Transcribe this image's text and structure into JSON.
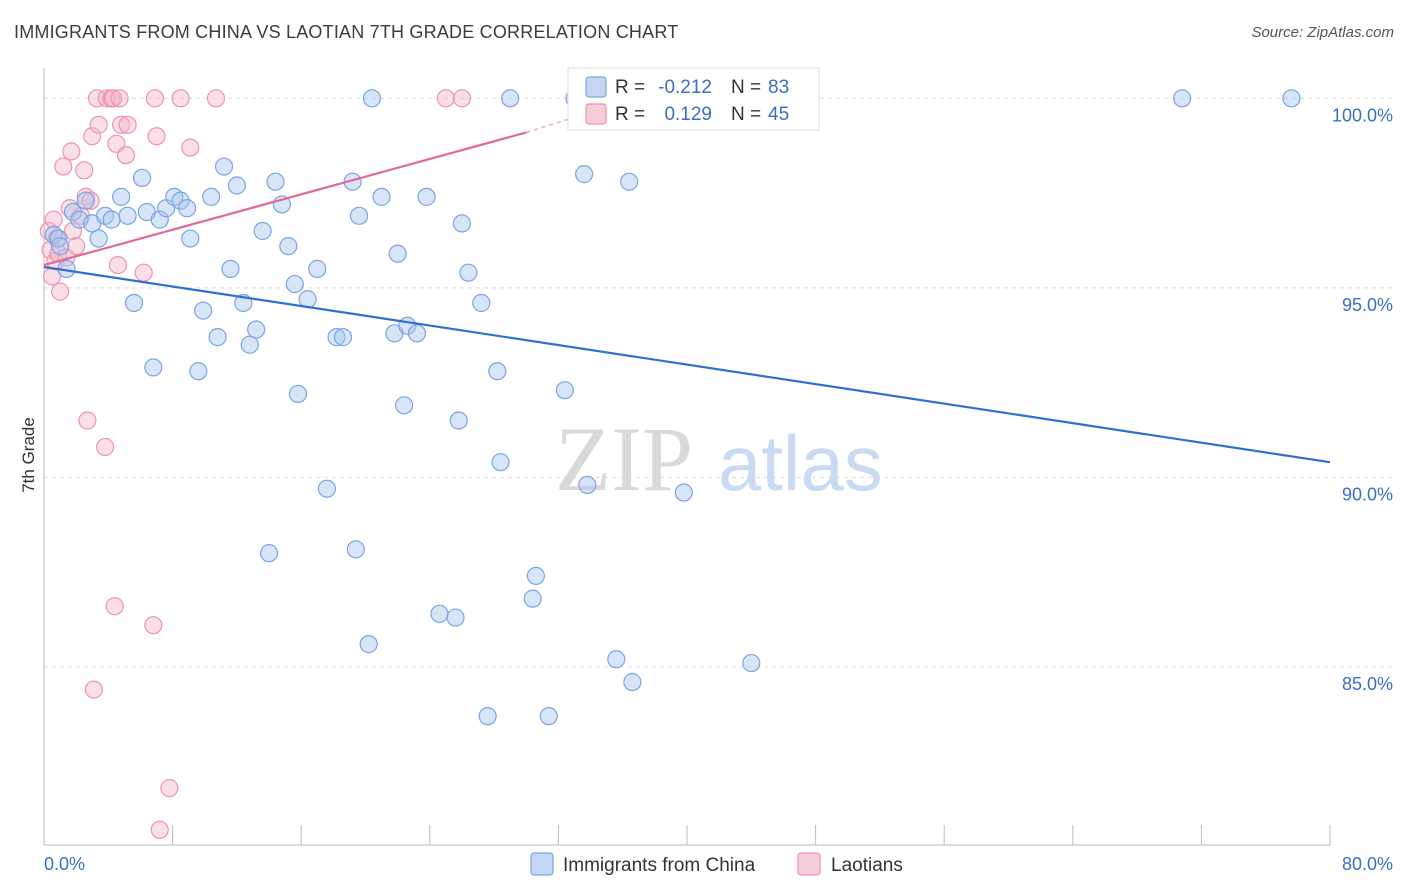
{
  "title": "IMMIGRANTS FROM CHINA VS LAOTIAN 7TH GRADE CORRELATION CHART",
  "source": "Source: ZipAtlas.com",
  "watermark": {
    "zip": "ZIP",
    "atlas": "atlas"
  },
  "colors": {
    "china_fill": "#a9c6ef",
    "china_stroke": "#7aa5e0",
    "china_line": "#2f6fd0",
    "laos_fill": "#f5b8ca",
    "laos_stroke": "#ee94b0",
    "laos_line": "#e06a98",
    "grid": "#dddddd",
    "axis": "#bbbbbb"
  },
  "chart_data": {
    "type": "scatter",
    "ylabel": "7th Grade",
    "xlim": [
      0,
      80
    ],
    "ylim": [
      80.3,
      100.8
    ],
    "x_tick_labels": [
      {
        "x": 0,
        "label": "0.0%"
      },
      {
        "x": 80,
        "label": "80.0%"
      }
    ],
    "y_tick_labels": [
      {
        "y": 100,
        "label": "100.0%"
      },
      {
        "y": 95,
        "label": "95.0%"
      },
      {
        "y": 90,
        "label": "90.0%"
      },
      {
        "y": 85,
        "label": "85.0%"
      }
    ],
    "legend": {
      "rows": [
        {
          "r_label": "R =",
          "r_value": "-0.212",
          "n_label": "N =",
          "n_value": "83"
        },
        {
          "r_label": "R =",
          "r_value": "0.129",
          "n_label": "N =",
          "n_value": "45"
        }
      ]
    },
    "series": [
      {
        "name": "Immigrants from China",
        "trend": {
          "x0": 0,
          "y0": 95.55,
          "x1": 80,
          "y1": 90.4
        },
        "points": [
          [
            0.6,
            96.4
          ],
          [
            0.9,
            96.3
          ],
          [
            1.0,
            96.1
          ],
          [
            1.4,
            95.5
          ],
          [
            1.8,
            97.0
          ],
          [
            2.2,
            96.8
          ],
          [
            2.6,
            97.3
          ],
          [
            3.0,
            96.7
          ],
          [
            3.4,
            96.3
          ],
          [
            3.8,
            96.9
          ],
          [
            4.2,
            96.8
          ],
          [
            4.8,
            97.4
          ],
          [
            5.2,
            96.9
          ],
          [
            5.6,
            94.6
          ],
          [
            6.1,
            97.9
          ],
          [
            6.4,
            97.0
          ],
          [
            6.8,
            92.9
          ],
          [
            7.2,
            96.8
          ],
          [
            7.6,
            97.1
          ],
          [
            8.1,
            97.4
          ],
          [
            8.5,
            97.3
          ],
          [
            8.9,
            97.1
          ],
          [
            9.1,
            96.3
          ],
          [
            9.6,
            92.8
          ],
          [
            9.9,
            94.4
          ],
          [
            10.4,
            97.4
          ],
          [
            10.8,
            93.7
          ],
          [
            11.2,
            98.2
          ],
          [
            11.6,
            95.5
          ],
          [
            12.0,
            97.7
          ],
          [
            12.4,
            94.6
          ],
          [
            12.8,
            93.5
          ],
          [
            13.2,
            93.9
          ],
          [
            13.6,
            96.5
          ],
          [
            14.0,
            88.0
          ],
          [
            14.4,
            97.8
          ],
          [
            14.8,
            97.2
          ],
          [
            15.2,
            96.1
          ],
          [
            15.6,
            95.1
          ],
          [
            15.8,
            92.2
          ],
          [
            16.4,
            94.7
          ],
          [
            17.0,
            95.5
          ],
          [
            17.6,
            89.7
          ],
          [
            18.2,
            93.7
          ],
          [
            18.6,
            93.7
          ],
          [
            19.2,
            97.8
          ],
          [
            19.4,
            88.1
          ],
          [
            19.6,
            96.9
          ],
          [
            20.2,
            85.6
          ],
          [
            20.4,
            100.0
          ],
          [
            21.0,
            97.4
          ],
          [
            21.8,
            93.8
          ],
          [
            22.0,
            95.9
          ],
          [
            22.4,
            91.9
          ],
          [
            22.6,
            94.0
          ],
          [
            23.2,
            93.8
          ],
          [
            23.8,
            97.4
          ],
          [
            24.6,
            86.4
          ],
          [
            25.6,
            86.3
          ],
          [
            25.8,
            91.5
          ],
          [
            26.0,
            96.7
          ],
          [
            26.4,
            95.4
          ],
          [
            27.2,
            94.6
          ],
          [
            27.6,
            83.7
          ],
          [
            28.2,
            92.8
          ],
          [
            28.4,
            90.4
          ],
          [
            29.0,
            100.0
          ],
          [
            30.4,
            86.8
          ],
          [
            30.6,
            87.4
          ],
          [
            31.4,
            83.7
          ],
          [
            32.4,
            92.3
          ],
          [
            33.0,
            100.0
          ],
          [
            33.6,
            98.0
          ],
          [
            33.8,
            89.8
          ],
          [
            35.6,
            85.2
          ],
          [
            36.4,
            97.8
          ],
          [
            36.6,
            84.6
          ],
          [
            37.2,
            99.9
          ],
          [
            39.8,
            89.6
          ],
          [
            44.0,
            85.1
          ],
          [
            46.4,
            100.0
          ],
          [
            70.8,
            100.0
          ],
          [
            77.6,
            100.0
          ]
        ]
      },
      {
        "name": "Laotians",
        "trend": {
          "x0": 0,
          "y0": 95.6,
          "x1": 30,
          "y1": 99.1,
          "x_dash_end": 33,
          "y_dash_end": 99.5
        },
        "points": [
          [
            0.3,
            96.5
          ],
          [
            0.4,
            96.0
          ],
          [
            0.5,
            95.3
          ],
          [
            0.6,
            96.8
          ],
          [
            0.7,
            95.7
          ],
          [
            0.8,
            96.3
          ],
          [
            0.9,
            95.9
          ],
          [
            1.0,
            94.9
          ],
          [
            1.2,
            98.2
          ],
          [
            1.4,
            95.8
          ],
          [
            1.6,
            97.1
          ],
          [
            1.7,
            98.6
          ],
          [
            1.8,
            96.5
          ],
          [
            2.0,
            96.1
          ],
          [
            2.3,
            96.9
          ],
          [
            2.5,
            98.1
          ],
          [
            2.6,
            97.4
          ],
          [
            2.7,
            91.5
          ],
          [
            2.9,
            97.3
          ],
          [
            3.0,
            99.0
          ],
          [
            3.1,
            84.4
          ],
          [
            3.3,
            100.0
          ],
          [
            3.4,
            99.3
          ],
          [
            3.8,
            90.8
          ],
          [
            3.9,
            100.0
          ],
          [
            4.2,
            100.0
          ],
          [
            4.3,
            100.0
          ],
          [
            4.4,
            86.6
          ],
          [
            4.5,
            98.8
          ],
          [
            4.6,
            95.6
          ],
          [
            4.7,
            100.0
          ],
          [
            4.8,
            99.3
          ],
          [
            5.1,
            98.5
          ],
          [
            5.2,
            99.3
          ],
          [
            6.2,
            95.4
          ],
          [
            6.8,
            86.1
          ],
          [
            6.9,
            100.0
          ],
          [
            7.0,
            99.0
          ],
          [
            7.2,
            80.7
          ],
          [
            7.8,
            81.8
          ],
          [
            8.5,
            100.0
          ],
          [
            9.1,
            98.7
          ],
          [
            10.7,
            100.0
          ],
          [
            25.0,
            100.0
          ],
          [
            26.0,
            100.0
          ]
        ]
      }
    ]
  }
}
